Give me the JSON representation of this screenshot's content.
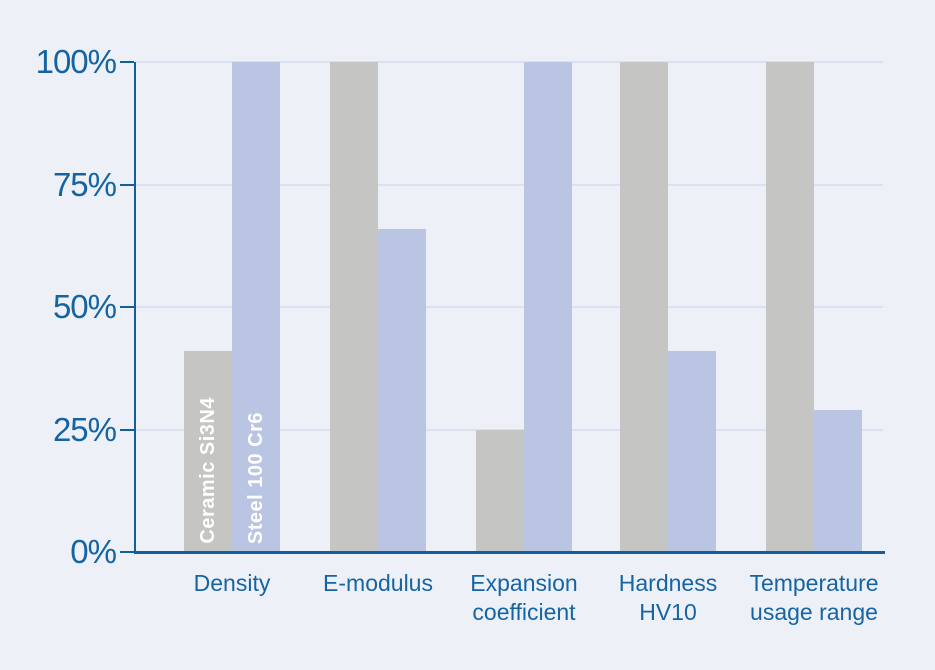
{
  "chart_data": {
    "type": "bar",
    "title": "",
    "categories": [
      "Density",
      "E-modulus",
      "Expansion coefficient",
      "Hardness HV10",
      "Temperature usage range"
    ],
    "category_label_lines": [
      [
        "Density"
      ],
      [
        "E-modulus"
      ],
      [
        "Expansion",
        "coefficient"
      ],
      [
        "Hardness",
        "HV10"
      ],
      [
        "Temperature",
        "usage range"
      ]
    ],
    "series": [
      {
        "name": "Ceramic Si3N4",
        "color": "#c5c5c3",
        "values": [
          41,
          100,
          25,
          100,
          100
        ]
      },
      {
        "name": "Steel 100 Cr6",
        "color": "#b9c5e3",
        "values": [
          100,
          66,
          100,
          41,
          29
        ]
      }
    ],
    "xlabel": "",
    "ylabel": "",
    "ylim": [
      0,
      100
    ],
    "yticks": [
      {
        "label": "0%",
        "value": 0
      },
      {
        "label": "25%",
        "value": 25
      },
      {
        "label": "50%",
        "value": 50
      },
      {
        "label": "75%",
        "value": 75
      },
      {
        "label": "100%",
        "value": 100
      }
    ],
    "grid": "horizontal",
    "legend_position": "inside-first-bars"
  },
  "colors": {
    "background": "#eef0f8",
    "axis": "#135f9e",
    "tick_label_text": "#1464a3",
    "category_label_text": "#1565a4",
    "gridline": "#dbe1f0",
    "ceramic_bar": "#c5c5c3",
    "steel_bar": "#b9c5e3",
    "bar_label_text": "#ffffff"
  }
}
